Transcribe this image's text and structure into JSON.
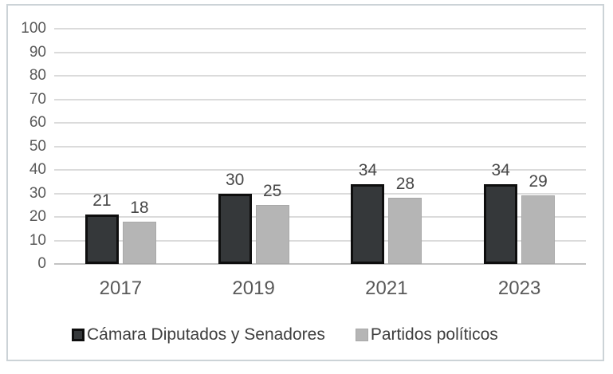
{
  "chart_data": {
    "type": "bar",
    "title": "",
    "xlabel": "",
    "ylabel": "",
    "categories": [
      "2017",
      "2019",
      "2021",
      "2023"
    ],
    "series": [
      {
        "name": "Cámara Diputados y Senadores",
        "values": [
          21,
          30,
          34,
          34
        ],
        "color": "#35383a",
        "border_color": "#0e0e0e"
      },
      {
        "name": "Partidos políticos",
        "values": [
          18,
          25,
          28,
          29
        ],
        "color": "#b5b5b5",
        "border_color": "#a8a8a8"
      }
    ],
    "ylim": [
      0,
      100
    ],
    "yticks": [
      0,
      10,
      20,
      30,
      40,
      50,
      60,
      70,
      80,
      90,
      100
    ],
    "grid": true,
    "gridline_color": "#dbdbdb",
    "axis_line_color": "#c3c3c3",
    "legend_position": "bottom",
    "frame_border_color": "#ccd3d7",
    "tick_label_color": "#595959",
    "value_label_color": "#474747",
    "legend_label_color": "#3f3f3f"
  }
}
